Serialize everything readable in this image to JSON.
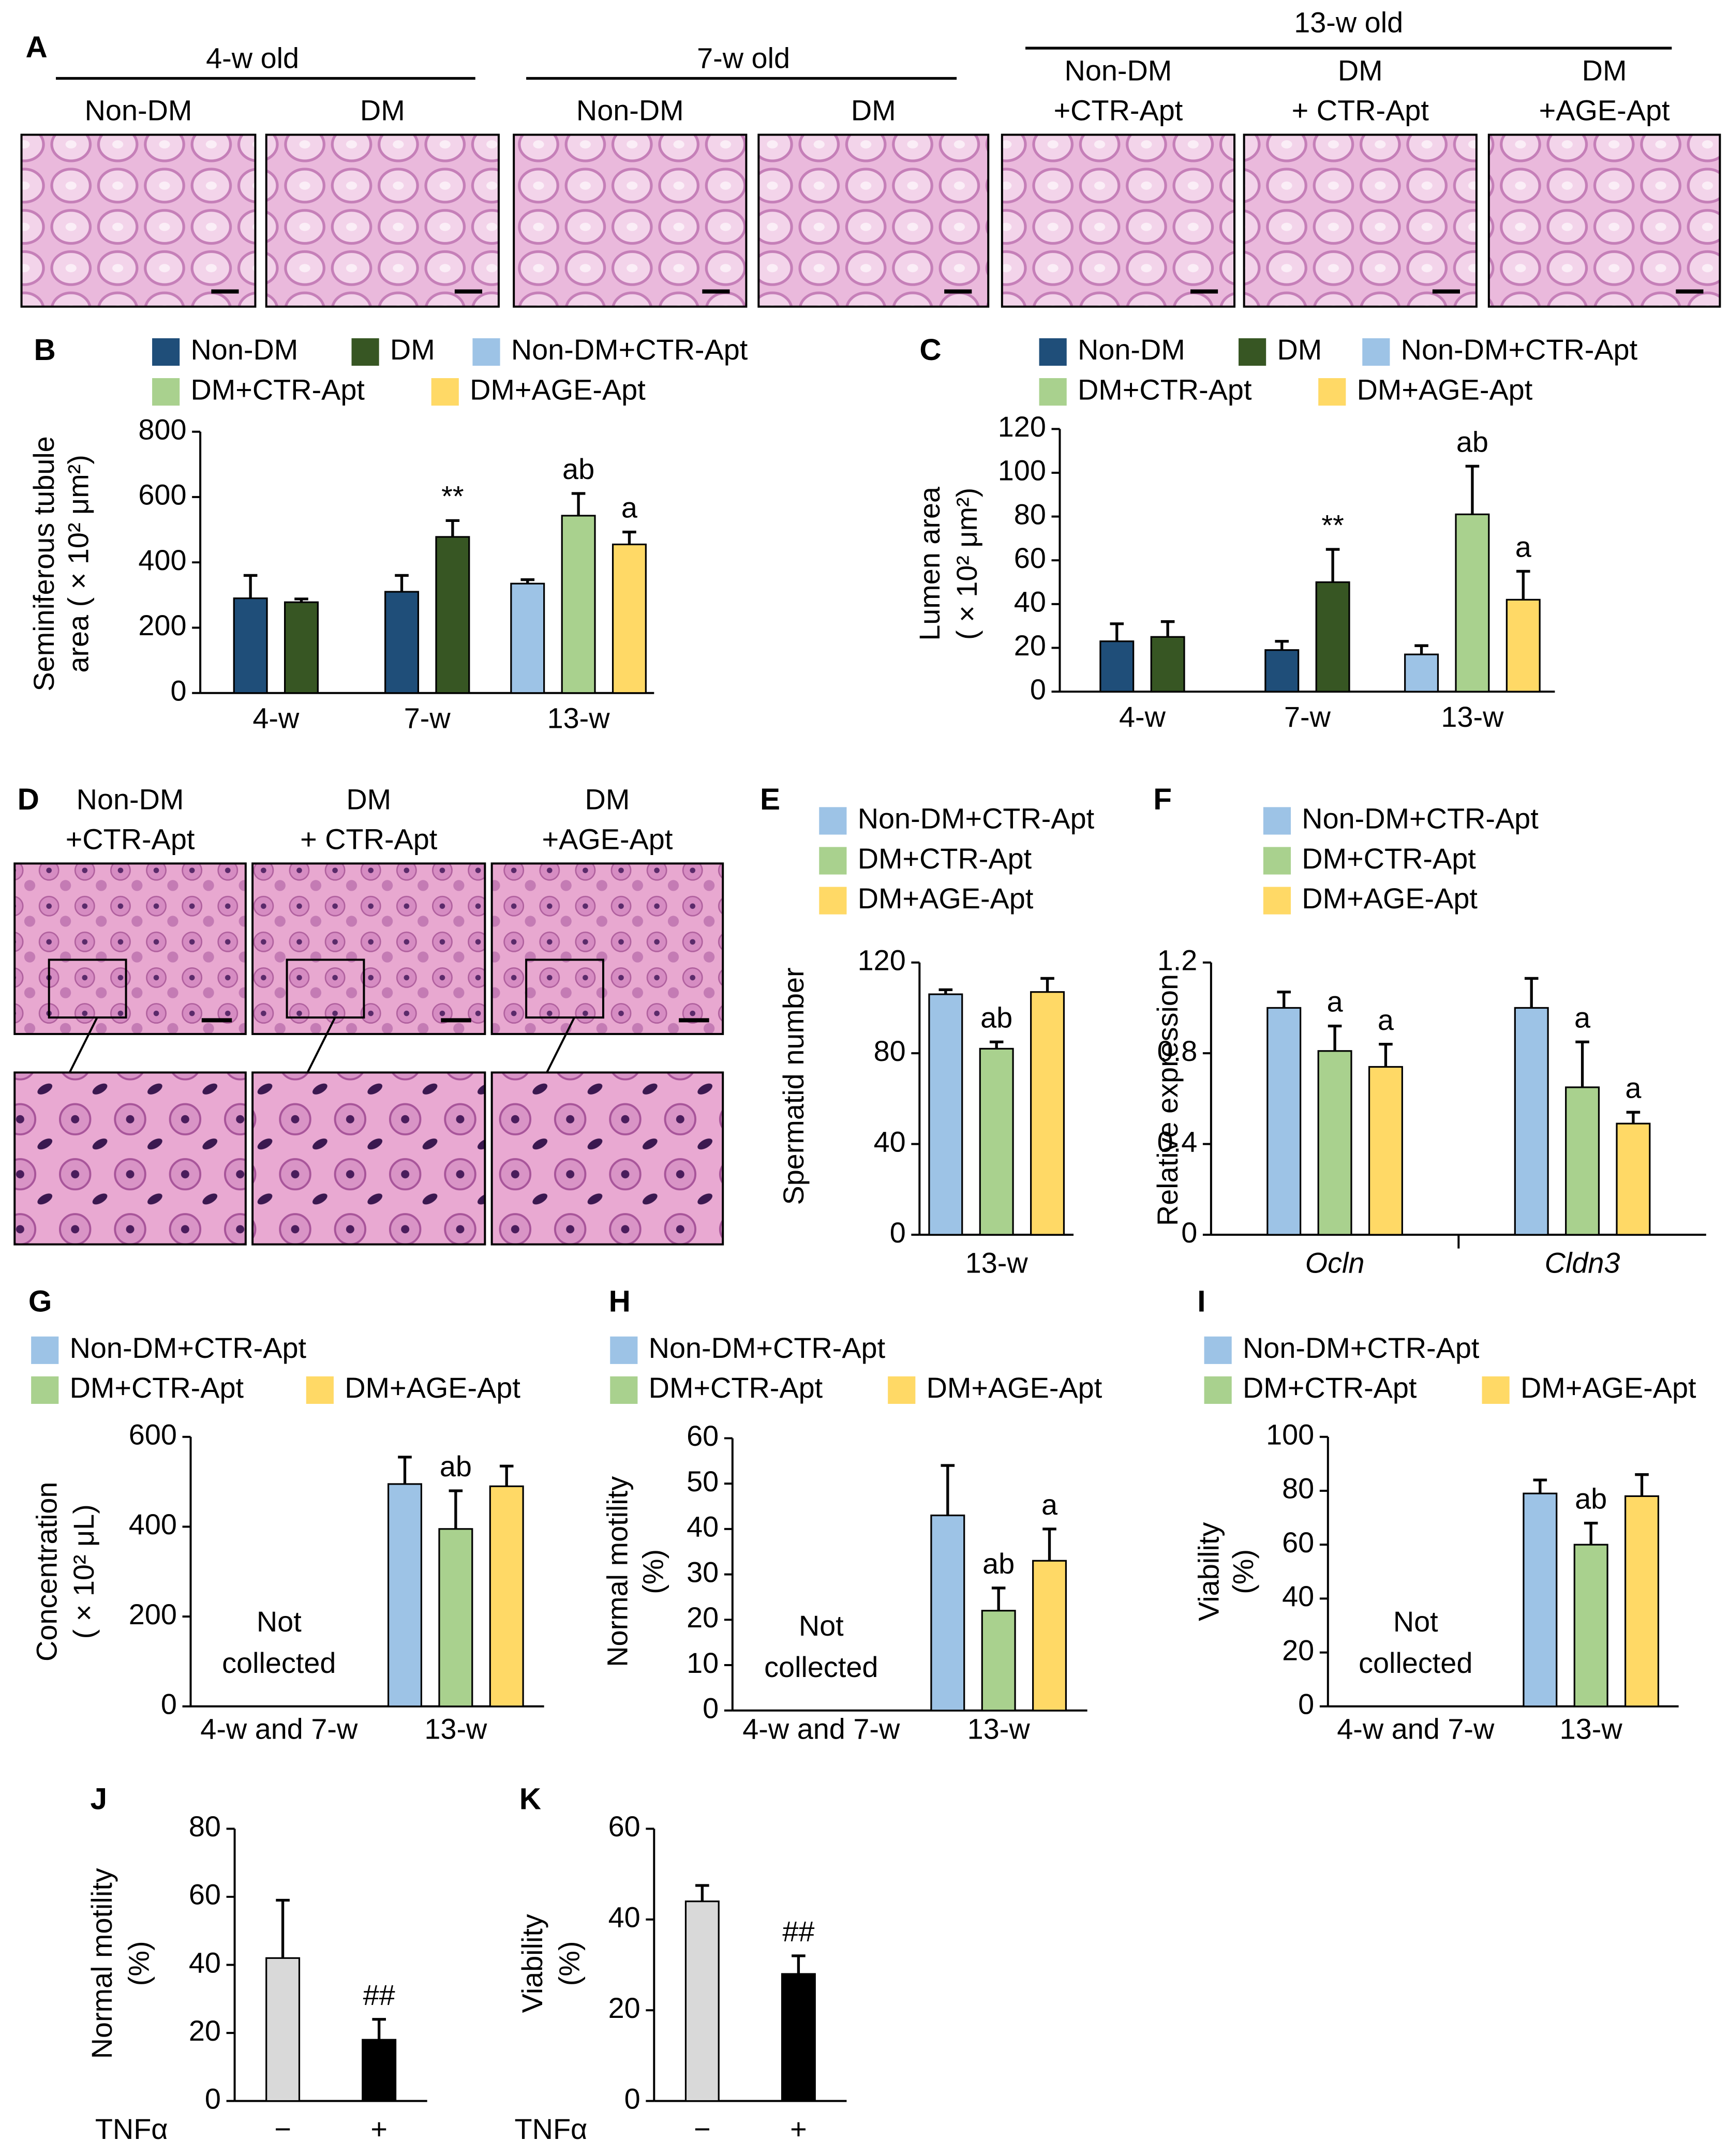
{
  "histology": {
    "panel_a": {
      "letter": "A",
      "groups": [
        {
          "title": "4-w old",
          "labels": [
            [
              "Non-DM"
            ],
            [
              "DM"
            ]
          ]
        },
        {
          "title": "7-w old",
          "labels": [
            [
              "Non-DM"
            ],
            [
              "DM"
            ]
          ]
        },
        {
          "title": "13-w old",
          "labels": [
            [
              "Non-DM",
              "+CTR-Apt"
            ],
            [
              "DM",
              "+ CTR-Apt"
            ],
            [
              "DM",
              "+AGE-Apt"
            ]
          ]
        }
      ]
    },
    "panel_d": {
      "letter": "D",
      "labels": [
        [
          "Non-DM",
          "+CTR-Apt"
        ],
        [
          "DM",
          "+ CTR-Apt"
        ],
        [
          "DM",
          "+AGE-Apt"
        ]
      ]
    }
  },
  "chart_data": [
    {
      "type": "bar",
      "panel": "B",
      "ylabel": [
        "Seminiferous tubule",
        "area ( × 10² μm²)"
      ],
      "categories": [
        "4-w",
        "7-w",
        "13-w"
      ],
      "ylim": [
        0,
        800
      ],
      "yticks": [
        0,
        200,
        400,
        600,
        800
      ],
      "series": [
        {
          "name": "Non-DM",
          "color": "#1f4e79",
          "values": [
            290,
            310,
            null
          ],
          "errors": [
            70,
            50,
            null
          ]
        },
        {
          "name": "DM",
          "color": "#375623",
          "values": [
            278,
            478,
            null
          ],
          "errors": [
            10,
            50,
            null
          ],
          "annotations": [
            null,
            "**",
            null
          ]
        },
        {
          "name": "Non-DM+CTR-Apt",
          "color": "#9dc3e6",
          "values": [
            null,
            null,
            335
          ],
          "errors": [
            null,
            null,
            12
          ]
        },
        {
          "name": "DM+CTR-Apt",
          "color": "#a9d18e",
          "values": [
            null,
            null,
            543
          ],
          "errors": [
            null,
            null,
            68
          ],
          "annotations": [
            null,
            null,
            "ab"
          ]
        },
        {
          "name": "DM+AGE-Apt",
          "color": "#ffd966",
          "values": [
            null,
            null,
            455
          ],
          "errors": [
            null,
            null,
            38
          ],
          "annotations": [
            null,
            null,
            "a"
          ]
        }
      ]
    },
    {
      "type": "bar",
      "panel": "C",
      "ylabel": [
        "Lumen area",
        "( × 10²  μm²)"
      ],
      "categories": [
        "4-w",
        "7-w",
        "13-w"
      ],
      "ylim": [
        0,
        120
      ],
      "yticks": [
        0,
        20,
        40,
        60,
        80,
        100,
        120
      ],
      "series": [
        {
          "name": "Non-DM",
          "color": "#1f4e79",
          "values": [
            23,
            19,
            null
          ],
          "errors": [
            8,
            4,
            null
          ]
        },
        {
          "name": "DM",
          "color": "#375623",
          "values": [
            25,
            50,
            null
          ],
          "errors": [
            7,
            15,
            null
          ],
          "annotations": [
            null,
            "**",
            null
          ]
        },
        {
          "name": "Non-DM+CTR-Apt",
          "color": "#9dc3e6",
          "values": [
            null,
            null,
            17
          ],
          "errors": [
            null,
            null,
            4
          ]
        },
        {
          "name": "DM+CTR-Apt",
          "color": "#a9d18e",
          "values": [
            null,
            null,
            81
          ],
          "errors": [
            null,
            null,
            22
          ],
          "annotations": [
            null,
            null,
            "ab"
          ]
        },
        {
          "name": "DM+AGE-Apt",
          "color": "#ffd966",
          "values": [
            null,
            null,
            42
          ],
          "errors": [
            null,
            null,
            13
          ],
          "annotations": [
            null,
            null,
            "a"
          ]
        }
      ]
    },
    {
      "type": "bar",
      "panel": "E",
      "ylabel": [
        "Spermatid number"
      ],
      "categories": [
        "13-w"
      ],
      "ylim": [
        0,
        120
      ],
      "yticks": [
        0,
        40,
        80,
        120
      ],
      "series": [
        {
          "name": "Non-DM+CTR-Apt",
          "color": "#9dc3e6",
          "values": [
            106
          ],
          "errors": [
            2
          ]
        },
        {
          "name": "DM+CTR-Apt",
          "color": "#a9d18e",
          "values": [
            82
          ],
          "errors": [
            3
          ],
          "annotations": [
            "ab"
          ]
        },
        {
          "name": "DM+AGE-Apt",
          "color": "#ffd966",
          "values": [
            107
          ],
          "errors": [
            6
          ]
        }
      ]
    },
    {
      "type": "bar",
      "panel": "F",
      "ylabel": [
        "Relative  expression"
      ],
      "categories": [
        "Ocln",
        "Cldn3"
      ],
      "category_style": "italic",
      "ylim": [
        0,
        1.2
      ],
      "yticks": [
        0,
        0.4,
        0.8,
        1.2
      ],
      "series": [
        {
          "name": "Non-DM+CTR-Apt",
          "color": "#9dc3e6",
          "values": [
            1.0,
            1.0
          ],
          "errors": [
            0.07,
            0.13
          ]
        },
        {
          "name": "DM+CTR-Apt",
          "color": "#a9d18e",
          "values": [
            0.81,
            0.65
          ],
          "errors": [
            0.11,
            0.2
          ],
          "annotations": [
            "a",
            "a"
          ]
        },
        {
          "name": "DM+AGE-Apt",
          "color": "#ffd966",
          "values": [
            0.74,
            0.49
          ],
          "errors": [
            0.1,
            0.05
          ],
          "annotations": [
            "a",
            "a"
          ]
        }
      ]
    },
    {
      "type": "bar",
      "panel": "G",
      "ylabel": [
        "Concentration",
        "( × 10² μL)"
      ],
      "note": [
        "Not",
        "collected"
      ],
      "categories": [
        "4-w and 7-w",
        "13-w"
      ],
      "ylim": [
        0,
        600
      ],
      "yticks": [
        0,
        200,
        400,
        600
      ],
      "series": [
        {
          "name": "Non-DM+CTR-Apt",
          "color": "#9dc3e6",
          "values": [
            null,
            495
          ],
          "errors": [
            null,
            60
          ]
        },
        {
          "name": "DM+CTR-Apt",
          "color": "#a9d18e",
          "values": [
            null,
            395
          ],
          "errors": [
            null,
            85
          ],
          "annotations": [
            null,
            "ab"
          ]
        },
        {
          "name": "DM+AGE-Apt",
          "color": "#ffd966",
          "values": [
            null,
            490
          ],
          "errors": [
            null,
            45
          ]
        }
      ]
    },
    {
      "type": "bar",
      "panel": "H",
      "ylabel": [
        "Normal motility",
        "(%)"
      ],
      "note": [
        "Not",
        "collected"
      ],
      "categories": [
        "4-w and 7-w",
        "13-w"
      ],
      "ylim": [
        0,
        60
      ],
      "yticks": [
        0,
        10,
        20,
        30,
        40,
        50,
        60
      ],
      "series": [
        {
          "name": "Non-DM+CTR-Apt",
          "color": "#9dc3e6",
          "values": [
            null,
            43
          ],
          "errors": [
            null,
            11
          ]
        },
        {
          "name": "DM+CTR-Apt",
          "color": "#a9d18e",
          "values": [
            null,
            22
          ],
          "errors": [
            null,
            5
          ],
          "annotations": [
            null,
            "ab"
          ]
        },
        {
          "name": "DM+AGE-Apt",
          "color": "#ffd966",
          "values": [
            null,
            33
          ],
          "errors": [
            null,
            7
          ],
          "annotations": [
            null,
            "a"
          ]
        }
      ]
    },
    {
      "type": "bar",
      "panel": "I",
      "ylabel": [
        "Viability",
        "(%)"
      ],
      "note": [
        "Not",
        "collected"
      ],
      "categories": [
        "4-w and 7-w",
        "13-w"
      ],
      "ylim": [
        0,
        100
      ],
      "yticks": [
        0,
        20,
        40,
        60,
        80,
        100
      ],
      "series": [
        {
          "name": "Non-DM+CTR-Apt",
          "color": "#9dc3e6",
          "values": [
            null,
            79
          ],
          "errors": [
            null,
            5
          ]
        },
        {
          "name": "DM+CTR-Apt",
          "color": "#a9d18e",
          "values": [
            null,
            60
          ],
          "errors": [
            null,
            8
          ],
          "annotations": [
            null,
            "ab"
          ]
        },
        {
          "name": "DM+AGE-Apt",
          "color": "#ffd966",
          "values": [
            null,
            78
          ],
          "errors": [
            null,
            8
          ]
        }
      ]
    },
    {
      "type": "bar",
      "panel": "J",
      "ylabel": [
        "Normal motility",
        "(%)"
      ],
      "xlabel": "TNFα",
      "categories": [
        "−",
        "+"
      ],
      "ylim": [
        0,
        80
      ],
      "yticks": [
        0,
        20,
        40,
        60,
        80
      ],
      "series": [
        {
          "colors": [
            "#d9d9d9",
            "#000000"
          ],
          "values": [
            42,
            18
          ],
          "errors": [
            17,
            6
          ],
          "annotations": [
            null,
            "##"
          ]
        }
      ]
    },
    {
      "type": "bar",
      "panel": "K",
      "ylabel": [
        "Viability",
        "(%)"
      ],
      "xlabel": "TNFα",
      "categories": [
        "−",
        "+"
      ],
      "ylim": [
        0,
        60
      ],
      "yticks": [
        0,
        20,
        40,
        60
      ],
      "series": [
        {
          "colors": [
            "#d9d9d9",
            "#000000"
          ],
          "values": [
            44,
            28
          ],
          "errors": [
            3.5,
            4
          ],
          "annotations": [
            null,
            "##"
          ]
        }
      ]
    }
  ]
}
